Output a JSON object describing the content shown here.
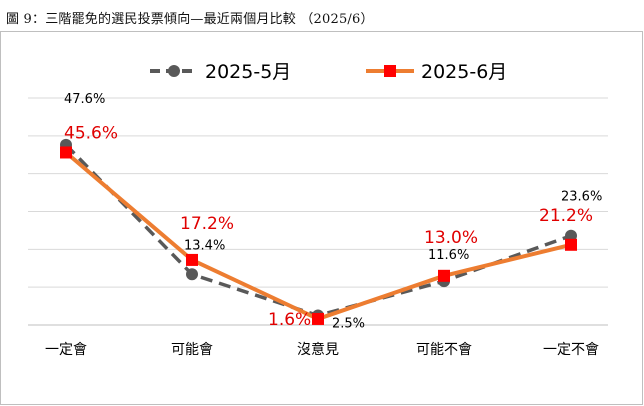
{
  "caption": "圖 9：三階罷免的選民投票傾向—最近兩個月比較 （2025/6）",
  "colors": {
    "may": "#595959",
    "jun": "#ed7d31",
    "jun_marker": "#ff0000",
    "jun_label": "#e00000",
    "grid": "#d9d9d9"
  },
  "chart_data": {
    "type": "line",
    "categories": [
      "一定會",
      "可能會",
      "沒意見",
      "可能不會",
      "一定不會"
    ],
    "series": [
      {
        "name": "2025-5月",
        "values": [
          47.6,
          13.4,
          2.5,
          11.6,
          23.6
        ],
        "labels": [
          "47.6%",
          "13.4%",
          "2.5%",
          "11.6%",
          "23.6%"
        ],
        "style": "dashed",
        "marker": "circle"
      },
      {
        "name": "2025-6月",
        "values": [
          45.6,
          17.2,
          1.6,
          13.0,
          21.2
        ],
        "labels": [
          "45.6%",
          "17.2%",
          "1.6%",
          "13.0%",
          "21.2%"
        ],
        "style": "solid",
        "marker": "square"
      }
    ],
    "ylim": [
      0,
      60
    ],
    "grid": true,
    "legend": "top-center",
    "xlabel": "",
    "ylabel": ""
  }
}
